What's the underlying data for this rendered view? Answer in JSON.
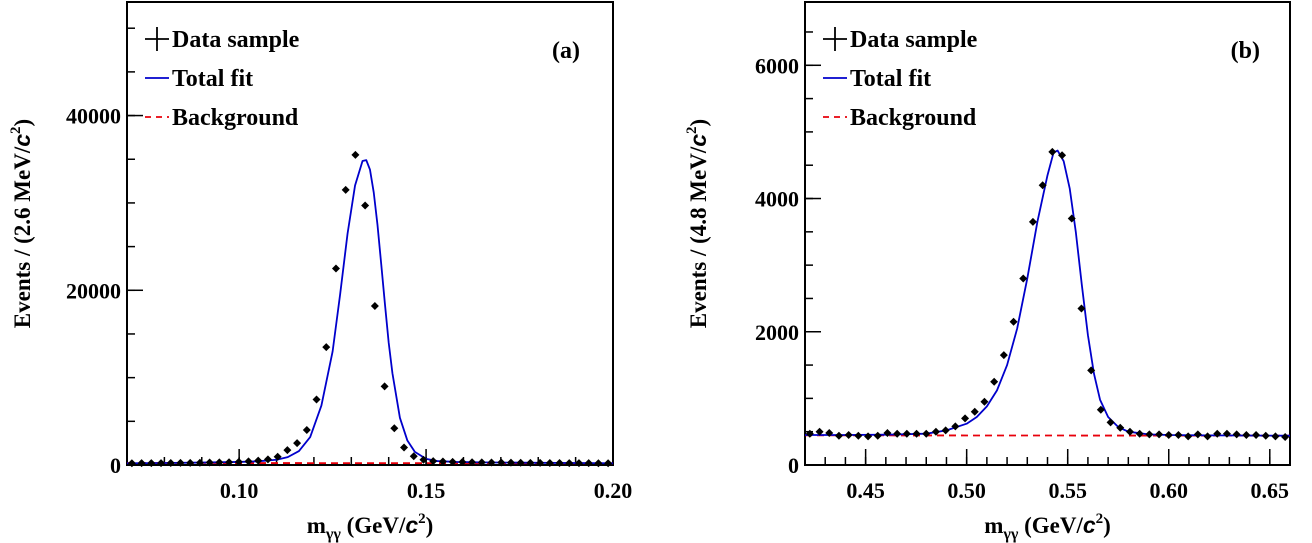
{
  "chart_data": [
    {
      "type": "scatter",
      "panel_label": "(a)",
      "xlabel": "m",
      "xlabel_sub": "γγ",
      "xlabel_units_prefix": " (GeV/",
      "xlabel_units_c": "c",
      "xlabel_units_exp": "2",
      "xlabel_units_suffix": ")",
      "ylabel_prefix": "Events / (2.6 MeV/",
      "ylabel_c": "c",
      "ylabel_exp": "2",
      "ylabel_suffix": ")",
      "xlim": [
        0.07,
        0.2
      ],
      "ylim": [
        0,
        53000
      ],
      "xticks": [
        {
          "v": 0.1,
          "label": "0.10"
        },
        {
          "v": 0.15,
          "label": "0.15"
        },
        {
          "v": 0.2,
          "label": "0.20"
        }
      ],
      "yticks": [
        {
          "v": 0,
          "label": "0"
        },
        {
          "v": 20000,
          "label": "20000"
        },
        {
          "v": 40000,
          "label": "40000"
        }
      ],
      "x_minor_step": 0.01,
      "y_minor_step": 5000,
      "legend": {
        "position": "top-left",
        "entries": [
          {
            "label": "Data sample",
            "style": "data"
          },
          {
            "label": "Total fit",
            "style": "line",
            "color": "#0000cc"
          },
          {
            "label": "Background",
            "style": "dashed",
            "color": "#e8000b"
          }
        ]
      },
      "series": [
        {
          "name": "Data sample",
          "style": "points",
          "x": [
            0.0713,
            0.0739,
            0.0765,
            0.0791,
            0.0817,
            0.0843,
            0.0869,
            0.0895,
            0.0921,
            0.0947,
            0.0973,
            0.0999,
            0.1025,
            0.1051,
            0.1077,
            0.1103,
            0.1129,
            0.1155,
            0.1181,
            0.1207,
            0.1233,
            0.1259,
            0.1285,
            0.1311,
            0.1337,
            0.1363,
            0.1389,
            0.1415,
            0.1441,
            0.1467,
            0.1493,
            0.1519,
            0.1545,
            0.1571,
            0.1597,
            0.1623,
            0.1649,
            0.1675,
            0.1701,
            0.1727,
            0.1753,
            0.1779,
            0.1805,
            0.1831,
            0.1857,
            0.1883,
            0.1909,
            0.1935,
            0.1961,
            0.1987
          ],
          "y": [
            200,
            210,
            210,
            220,
            230,
            240,
            250,
            260,
            280,
            300,
            320,
            360,
            420,
            500,
            650,
            950,
            1700,
            2500,
            4000,
            7500,
            13500,
            22500,
            31500,
            35500,
            29700,
            18200,
            9000,
            4200,
            2000,
            1000,
            600,
            450,
            400,
            360,
            340,
            320,
            300,
            290,
            280,
            270,
            260,
            250,
            240,
            230,
            230,
            220,
            210,
            210,
            200,
            200
          ]
        },
        {
          "name": "Total fit",
          "style": "line",
          "color": "#0000cc",
          "x": [
            0.07,
            0.08,
            0.09,
            0.1,
            0.105,
            0.11,
            0.113,
            0.116,
            0.119,
            0.122,
            0.125,
            0.127,
            0.129,
            0.131,
            0.133,
            0.134,
            0.135,
            0.136,
            0.137,
            0.138,
            0.139,
            0.14,
            0.141,
            0.143,
            0.145,
            0.147,
            0.15,
            0.153,
            0.158,
            0.165,
            0.18,
            0.2
          ],
          "y": [
            200,
            230,
            280,
            350,
            420,
            600,
            900,
            1600,
            3200,
            6800,
            13000,
            19500,
            26500,
            32000,
            34800,
            34900,
            33800,
            31200,
            27500,
            23000,
            18400,
            14000,
            10500,
            5400,
            2800,
            1500,
            700,
            450,
            350,
            300,
            250,
            200
          ]
        },
        {
          "name": "Background",
          "style": "dashed",
          "color": "#e8000b",
          "x": [
            0.07,
            0.2
          ],
          "y": [
            230,
            200
          ]
        }
      ]
    },
    {
      "type": "scatter",
      "panel_label": "(b)",
      "xlabel": "m",
      "xlabel_sub": "γγ",
      "xlabel_units_prefix": " (GeV/",
      "xlabel_units_c": "c",
      "xlabel_units_exp": "2",
      "xlabel_units_suffix": ")",
      "ylabel_prefix": "Events / (4.8 MeV/",
      "ylabel_c": "c",
      "ylabel_exp": "2",
      "ylabel_suffix": ")",
      "xlim": [
        0.42,
        0.66
      ],
      "ylim": [
        0,
        6950
      ],
      "xticks": [
        {
          "v": 0.45,
          "label": "0.45"
        },
        {
          "v": 0.5,
          "label": "0.50"
        },
        {
          "v": 0.55,
          "label": "0.55"
        },
        {
          "v": 0.6,
          "label": "0.60"
        },
        {
          "v": 0.65,
          "label": "0.65"
        }
      ],
      "yticks": [
        {
          "v": 0,
          "label": "0"
        },
        {
          "v": 2000,
          "label": "2000"
        },
        {
          "v": 4000,
          "label": "4000"
        },
        {
          "v": 6000,
          "label": "6000"
        }
      ],
      "x_minor_step": 0.01,
      "y_minor_step": 500,
      "legend": {
        "position": "top-left",
        "entries": [
          {
            "label": "Data sample",
            "style": "data"
          },
          {
            "label": "Total fit",
            "style": "line",
            "color": "#0000cc"
          },
          {
            "label": "Background",
            "style": "dashed",
            "color": "#e8000b"
          }
        ]
      },
      "series": [
        {
          "name": "Data sample",
          "style": "points",
          "x": [
            0.4224,
            0.4272,
            0.432,
            0.4368,
            0.4416,
            0.4464,
            0.4512,
            0.456,
            0.4608,
            0.4656,
            0.4704,
            0.4752,
            0.48,
            0.4848,
            0.4896,
            0.4944,
            0.4992,
            0.504,
            0.5088,
            0.5136,
            0.5184,
            0.5232,
            0.528,
            0.5328,
            0.5376,
            0.5424,
            0.5472,
            0.552,
            0.5568,
            0.5616,
            0.5664,
            0.5712,
            0.576,
            0.5808,
            0.5856,
            0.5904,
            0.5952,
            0.6,
            0.6048,
            0.6096,
            0.6144,
            0.6192,
            0.624,
            0.6288,
            0.6336,
            0.6384,
            0.6432,
            0.648,
            0.6528,
            0.6576
          ],
          "y": [
            470,
            500,
            480,
            440,
            450,
            440,
            430,
            440,
            480,
            470,
            470,
            470,
            470,
            500,
            520,
            580,
            700,
            800,
            950,
            1250,
            1650,
            2150,
            2800,
            3650,
            4200,
            4700,
            4650,
            3700,
            2350,
            1420,
            830,
            640,
            560,
            500,
            470,
            460,
            460,
            450,
            450,
            430,
            460,
            430,
            470,
            470,
            460,
            450,
            450,
            440,
            430,
            420
          ]
        },
        {
          "name": "Total fit",
          "style": "line",
          "color": "#0000cc",
          "x": [
            0.42,
            0.44,
            0.46,
            0.48,
            0.49,
            0.5,
            0.505,
            0.51,
            0.515,
            0.52,
            0.525,
            0.53,
            0.535,
            0.54,
            0.543,
            0.545,
            0.548,
            0.551,
            0.554,
            0.557,
            0.56,
            0.563,
            0.566,
            0.57,
            0.575,
            0.58,
            0.59,
            0.6,
            0.62,
            0.66
          ],
          "y": [
            450,
            450,
            455,
            470,
            520,
            620,
            720,
            880,
            1120,
            1500,
            2050,
            2800,
            3650,
            4350,
            4690,
            4720,
            4560,
            4150,
            3500,
            2700,
            1950,
            1370,
            980,
            720,
            570,
            500,
            460,
            450,
            445,
            440
          ]
        },
        {
          "name": "Background",
          "style": "dashed",
          "color": "#e8000b",
          "x": [
            0.42,
            0.66
          ],
          "y": [
            445,
            440
          ]
        }
      ]
    }
  ]
}
